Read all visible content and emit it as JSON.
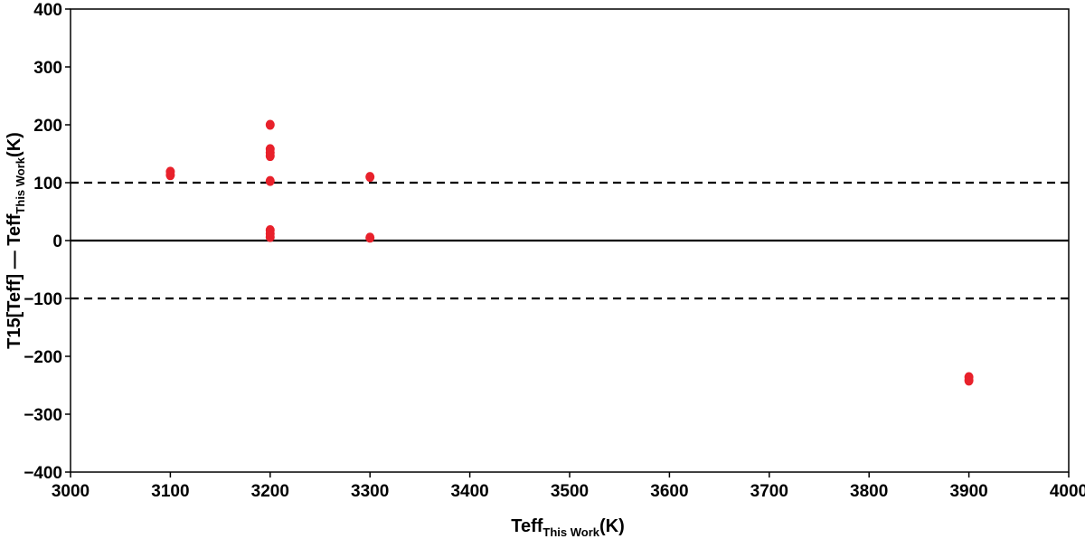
{
  "chart_data": {
    "type": "scatter",
    "title": "",
    "xlabel": {
      "main": "Teff",
      "sub": "This Work",
      "unit": "(K)"
    },
    "ylabel": {
      "main": "T15[Teff] — Teff",
      "sub": "This Work",
      "unit": "(K)"
    },
    "xlim": [
      3000,
      4000
    ],
    "ylim": [
      -400,
      400
    ],
    "x_ticks": [
      3000,
      3100,
      3200,
      3300,
      3400,
      3500,
      3600,
      3700,
      3800,
      3900,
      4000
    ],
    "x_tick_labels": [
      "3000",
      "3100",
      "3200",
      "3300",
      "3400",
      "3500",
      "3600",
      "3700",
      "3800",
      "3900",
      "4000"
    ],
    "y_ticks": [
      -400,
      -300,
      -200,
      -100,
      0,
      100,
      200,
      300,
      400
    ],
    "y_tick_labels": [
      "−400",
      "−300",
      "−200",
      "−100",
      "0",
      "100",
      "200",
      "300",
      "400"
    ],
    "grid": false,
    "reference_lines": [
      {
        "y": 100,
        "style": "dashed",
        "color": "#000000"
      },
      {
        "y": 0,
        "style": "solid",
        "color": "#000000"
      },
      {
        "y": -100,
        "style": "dashed",
        "color": "#000000"
      }
    ],
    "series": [
      {
        "color": "#e8212b",
        "points": [
          {
            "x": 3100,
            "y": 113
          },
          {
            "x": 3100,
            "y": 119
          },
          {
            "x": 3200,
            "y": 200
          },
          {
            "x": 3200,
            "y": 158
          },
          {
            "x": 3200,
            "y": 152
          },
          {
            "x": 3200,
            "y": 146
          },
          {
            "x": 3200,
            "y": 103
          },
          {
            "x": 3200,
            "y": 18
          },
          {
            "x": 3200,
            "y": 12
          },
          {
            "x": 3200,
            "y": 6
          },
          {
            "x": 3300,
            "y": 110
          },
          {
            "x": 3300,
            "y": 5
          },
          {
            "x": 3900,
            "y": -236
          },
          {
            "x": 3900,
            "y": -242
          }
        ]
      }
    ]
  }
}
